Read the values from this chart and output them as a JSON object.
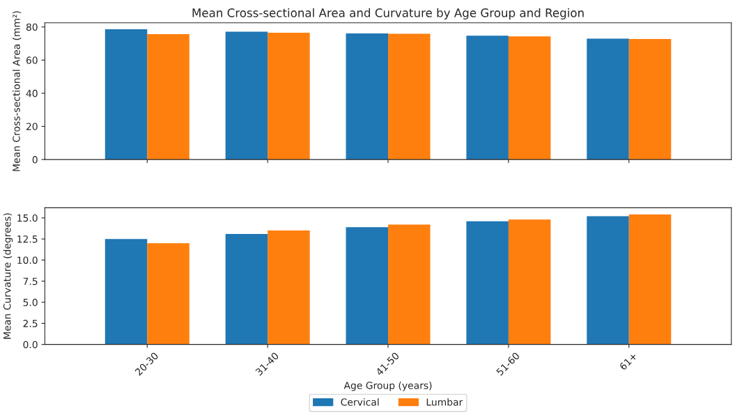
{
  "chart_data": [
    {
      "type": "bar",
      "title": "Mean Cross-sectional Area and Curvature by Age Group and Region",
      "ylabel": "Mean Cross-sectional Area (mm²)",
      "categories": [
        null,
        null,
        null,
        null,
        null
      ],
      "series": [
        {
          "color": "#1f77b4",
          "values": [
            78.6,
            77.2,
            76.1,
            74.7,
            72.9
          ]
        },
        {
          "color": "#ff7f0e",
          "values": [
            75.7,
            76.5,
            75.9,
            74.3,
            72.7
          ]
        }
      ],
      "ylim": [
        0,
        82.5
      ],
      "yticks": [
        0,
        20,
        40,
        60,
        80
      ],
      "grid": false
    },
    {
      "type": "bar",
      "xlabel": "Age Group (years)",
      "ylabel": "Mean Curvature (degrees)",
      "categories": [
        "20-30",
        "31-40",
        "41-50",
        "51-60",
        "61+"
      ],
      "series": [
        {
          "name": "Cervical",
          "color": "#1f77b4",
          "values": [
            12.5,
            13.1,
            13.9,
            14.6,
            15.2
          ]
        },
        {
          "name": "Lumbar",
          "color": "#ff7f0e",
          "values": [
            12.0,
            13.5,
            14.2,
            14.8,
            15.4
          ]
        }
      ],
      "ylim": [
        0,
        16.2
      ],
      "yticks": [
        {
          "value": 0,
          "label": "0.0"
        },
        {
          "value": 2.5,
          "label": "2.5"
        },
        {
          "value": 5,
          "label": "5.0"
        },
        {
          "value": 7.5,
          "label": "7.5"
        },
        {
          "value": 10,
          "label": "10.0"
        },
        {
          "value": 12.5,
          "label": "12.5"
        },
        {
          "value": 15,
          "label": "15.0"
        }
      ],
      "grid": false,
      "legend": "bottom"
    }
  ]
}
